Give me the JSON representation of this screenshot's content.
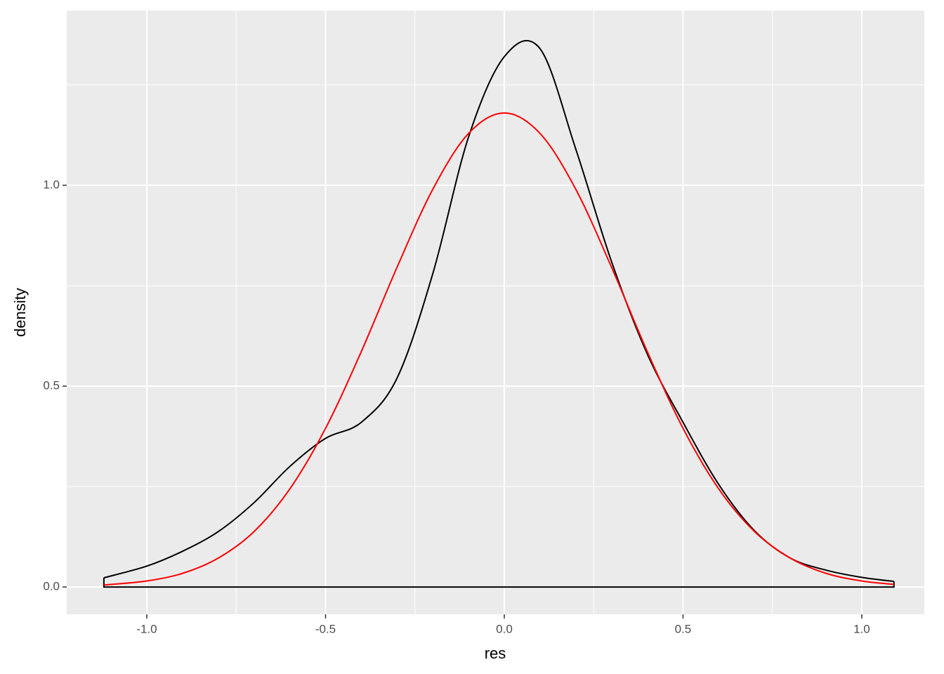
{
  "chart_data": {
    "type": "line",
    "x_label": "res",
    "y_label": "density",
    "x": [
      -1.12,
      -1.0,
      -0.9,
      -0.8,
      -0.7,
      -0.6,
      -0.5,
      -0.4,
      -0.3,
      -0.2,
      -0.1,
      0.0,
      0.1,
      0.2,
      0.3,
      0.4,
      0.5,
      0.6,
      0.7,
      0.8,
      0.9,
      1.0,
      1.09
    ],
    "series": [
      {
        "color": "#000000",
        "filled_to_zero": true,
        "values": [
          0.023,
          0.052,
          0.089,
          0.138,
          0.21,
          0.3,
          0.37,
          0.41,
          0.52,
          0.78,
          1.12,
          1.32,
          1.34,
          1.09,
          0.81,
          0.58,
          0.41,
          0.255,
          0.14,
          0.072,
          0.042,
          0.024,
          0.014
        ]
      },
      {
        "color": "#ff0000",
        "values": [
          0.005,
          0.015,
          0.034,
          0.072,
          0.138,
          0.244,
          0.395,
          0.586,
          0.796,
          0.99,
          1.129,
          1.18,
          1.129,
          0.99,
          0.796,
          0.586,
          0.395,
          0.244,
          0.138,
          0.072,
          0.034,
          0.015,
          0.0065
        ]
      }
    ],
    "xlim": [
      -1.224,
      1.175
    ],
    "ylim": [
      -0.068,
      1.435
    ],
    "xticks": [
      {
        "value": -1.0,
        "label": "-1.0"
      },
      -0.5,
      {
        "value": 0,
        "label": "0.0"
      },
      0.5,
      {
        "value": 1.0,
        "label": "1.0"
      }
    ],
    "yticks": [
      {
        "value": 0,
        "label": "0.0"
      },
      0.5,
      {
        "value": 1.0,
        "label": "1.0"
      }
    ],
    "x_minor_ticks": [
      -0.75,
      -0.25,
      0.25,
      0.75
    ],
    "y_minor_ticks": [
      0.25,
      0.75,
      1.25
    ],
    "grid": true,
    "panel_color": "#ebebeb"
  }
}
